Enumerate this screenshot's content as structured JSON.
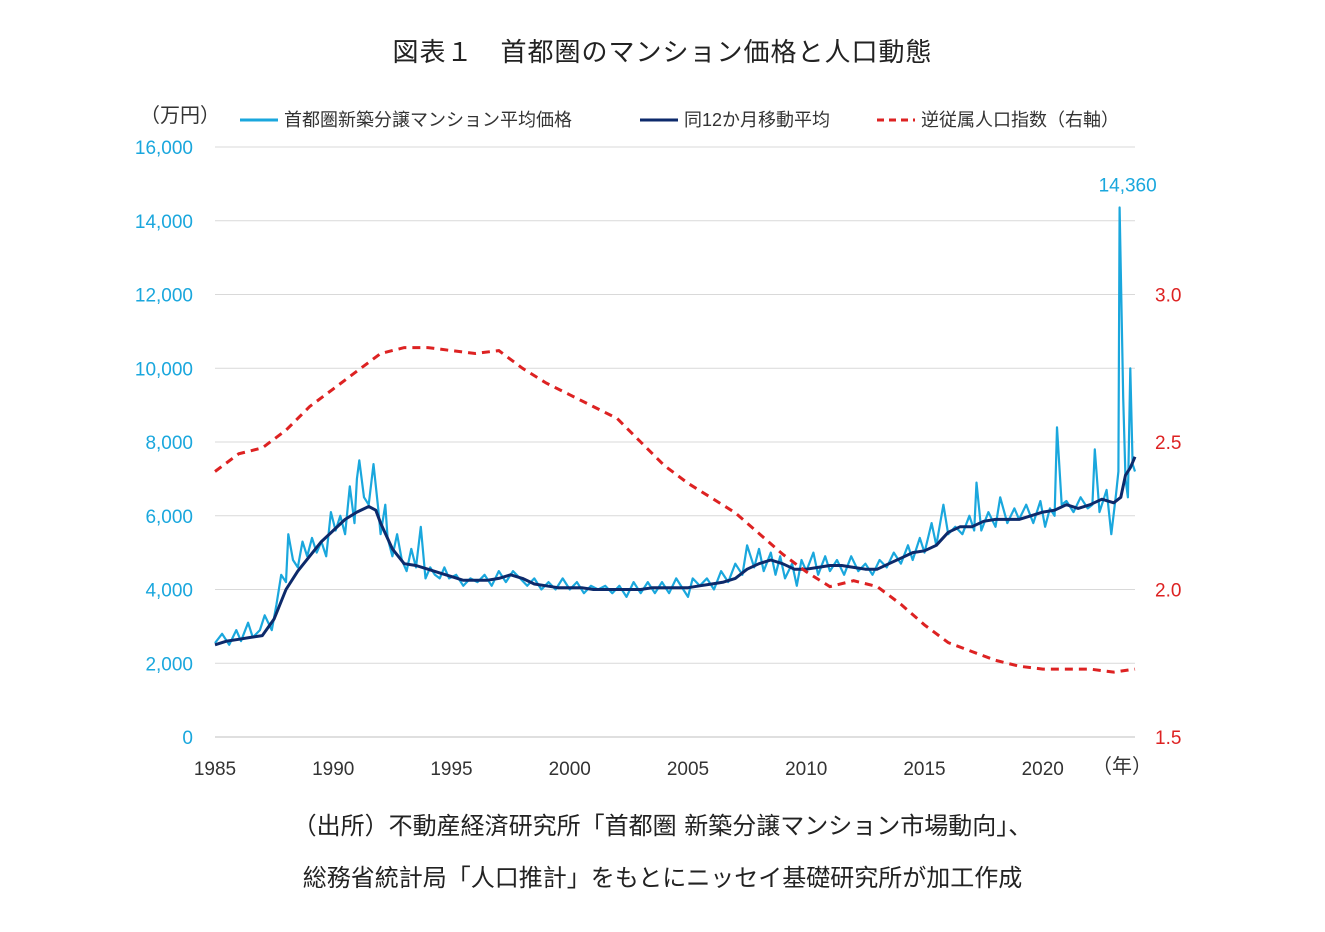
{
  "title": "図表１　首都圏のマンション価格と人口動態",
  "source_line1": "（出所）不動産経済研究所「首都圏 新築分譲マンション市場動向」、",
  "source_line2": "総務省統計局「人口推計」をもとにニッセイ基礎研究所が加工作成",
  "colors": {
    "price": "#1aa7dd",
    "moving_avg": "#0d2a6b",
    "ratio": "#dd2222",
    "left_axis": "#1aa7dd",
    "right_axis": "#dd2222",
    "grid": "#d9d9d9"
  },
  "chart_data": {
    "type": "line",
    "left_unit": "（万円）",
    "x_unit": "（年）",
    "x_ticks": [
      "1985",
      "1990",
      "1995",
      "2000",
      "2005",
      "2010",
      "2015",
      "2020"
    ],
    "xlim": [
      1985,
      2023.9
    ],
    "ylim_left": [
      0,
      16000
    ],
    "left_ticks": [
      "0",
      "2,000",
      "4,000",
      "6,000",
      "8,000",
      "10,000",
      "12,000",
      "14,000",
      "16,000"
    ],
    "ylim_right": [
      1.5,
      3.5
    ],
    "right_ticks": [
      "1.5",
      "2.0",
      "2.5",
      "3.0"
    ],
    "peak_label": "14,360",
    "peak_point": [
      2023.25,
      14360
    ],
    "series": [
      {
        "name": "首都圏新築分譲マンション平均価格",
        "axis": "left",
        "style": "solid-light",
        "points": [
          [
            1985.0,
            2550
          ],
          [
            1985.3,
            2800
          ],
          [
            1985.6,
            2500
          ],
          [
            1985.9,
            2900
          ],
          [
            1986.1,
            2600
          ],
          [
            1986.4,
            3100
          ],
          [
            1986.6,
            2700
          ],
          [
            1986.9,
            2900
          ],
          [
            1987.1,
            3300
          ],
          [
            1987.4,
            2900
          ],
          [
            1987.6,
            3600
          ],
          [
            1987.8,
            4400
          ],
          [
            1988.0,
            4200
          ],
          [
            1988.1,
            5500
          ],
          [
            1988.3,
            4800
          ],
          [
            1988.5,
            4600
          ],
          [
            1988.7,
            5300
          ],
          [
            1988.9,
            4900
          ],
          [
            1989.1,
            5400
          ],
          [
            1989.3,
            5000
          ],
          [
            1989.5,
            5300
          ],
          [
            1989.7,
            4900
          ],
          [
            1989.9,
            6100
          ],
          [
            1990.1,
            5600
          ],
          [
            1990.3,
            6000
          ],
          [
            1990.5,
            5500
          ],
          [
            1990.7,
            6800
          ],
          [
            1990.9,
            5800
          ],
          [
            1991.0,
            7000
          ],
          [
            1991.1,
            7500
          ],
          [
            1991.3,
            6500
          ],
          [
            1991.5,
            6300
          ],
          [
            1991.7,
            7400
          ],
          [
            1991.9,
            6200
          ],
          [
            1992.0,
            5500
          ],
          [
            1992.2,
            6300
          ],
          [
            1992.3,
            5400
          ],
          [
            1992.5,
            4900
          ],
          [
            1992.7,
            5500
          ],
          [
            1992.9,
            4800
          ],
          [
            1993.1,
            4500
          ],
          [
            1993.3,
            5100
          ],
          [
            1993.5,
            4600
          ],
          [
            1993.7,
            5700
          ],
          [
            1993.9,
            4300
          ],
          [
            1994.1,
            4600
          ],
          [
            1994.3,
            4400
          ],
          [
            1994.5,
            4300
          ],
          [
            1994.7,
            4600
          ],
          [
            1994.9,
            4300
          ],
          [
            1995.2,
            4400
          ],
          [
            1995.5,
            4100
          ],
          [
            1995.8,
            4300
          ],
          [
            1996.1,
            4200
          ],
          [
            1996.4,
            4400
          ],
          [
            1996.7,
            4100
          ],
          [
            1997.0,
            4500
          ],
          [
            1997.3,
            4200
          ],
          [
            1997.6,
            4500
          ],
          [
            1997.9,
            4300
          ],
          [
            1998.2,
            4100
          ],
          [
            1998.5,
            4300
          ],
          [
            1998.8,
            4000
          ],
          [
            1999.1,
            4200
          ],
          [
            1999.4,
            4000
          ],
          [
            1999.7,
            4300
          ],
          [
            2000.0,
            4000
          ],
          [
            2000.3,
            4200
          ],
          [
            2000.6,
            3900
          ],
          [
            2000.9,
            4100
          ],
          [
            2001.2,
            4000
          ],
          [
            2001.5,
            4100
          ],
          [
            2001.8,
            3900
          ],
          [
            2002.1,
            4100
          ],
          [
            2002.4,
            3800
          ],
          [
            2002.7,
            4200
          ],
          [
            2003.0,
            3900
          ],
          [
            2003.3,
            4200
          ],
          [
            2003.6,
            3900
          ],
          [
            2003.9,
            4200
          ],
          [
            2004.2,
            3900
          ],
          [
            2004.5,
            4300
          ],
          [
            2004.8,
            4000
          ],
          [
            2005.0,
            3800
          ],
          [
            2005.2,
            4300
          ],
          [
            2005.5,
            4100
          ],
          [
            2005.8,
            4300
          ],
          [
            2006.1,
            4000
          ],
          [
            2006.4,
            4500
          ],
          [
            2006.7,
            4200
          ],
          [
            2007.0,
            4700
          ],
          [
            2007.3,
            4400
          ],
          [
            2007.5,
            5200
          ],
          [
            2007.8,
            4600
          ],
          [
            2008.0,
            5100
          ],
          [
            2008.2,
            4500
          ],
          [
            2008.5,
            5000
          ],
          [
            2008.7,
            4400
          ],
          [
            2008.9,
            4900
          ],
          [
            2009.1,
            4300
          ],
          [
            2009.4,
            4700
          ],
          [
            2009.6,
            4100
          ],
          [
            2009.8,
            4800
          ],
          [
            2010.0,
            4500
          ],
          [
            2010.3,
            5000
          ],
          [
            2010.5,
            4400
          ],
          [
            2010.8,
            4900
          ],
          [
            2011.0,
            4500
          ],
          [
            2011.3,
            4800
          ],
          [
            2011.6,
            4400
          ],
          [
            2011.9,
            4900
          ],
          [
            2012.2,
            4500
          ],
          [
            2012.5,
            4700
          ],
          [
            2012.8,
            4400
          ],
          [
            2013.1,
            4800
          ],
          [
            2013.4,
            4600
          ],
          [
            2013.7,
            5000
          ],
          [
            2014.0,
            4700
          ],
          [
            2014.3,
            5200
          ],
          [
            2014.5,
            4800
          ],
          [
            2014.8,
            5400
          ],
          [
            2015.0,
            5000
          ],
          [
            2015.3,
            5800
          ],
          [
            2015.5,
            5200
          ],
          [
            2015.8,
            6300
          ],
          [
            2016.0,
            5500
          ],
          [
            2016.3,
            5700
          ],
          [
            2016.6,
            5500
          ],
          [
            2016.9,
            6000
          ],
          [
            2017.1,
            5600
          ],
          [
            2017.2,
            6900
          ],
          [
            2017.4,
            5600
          ],
          [
            2017.7,
            6100
          ],
          [
            2018.0,
            5700
          ],
          [
            2018.2,
            6500
          ],
          [
            2018.5,
            5800
          ],
          [
            2018.8,
            6200
          ],
          [
            2019.0,
            5900
          ],
          [
            2019.3,
            6300
          ],
          [
            2019.6,
            5800
          ],
          [
            2019.9,
            6400
          ],
          [
            2020.1,
            5700
          ],
          [
            2020.3,
            6200
          ],
          [
            2020.5,
            6000
          ],
          [
            2020.6,
            8400
          ],
          [
            2020.8,
            6300
          ],
          [
            2021.0,
            6400
          ],
          [
            2021.3,
            6100
          ],
          [
            2021.6,
            6500
          ],
          [
            2021.9,
            6200
          ],
          [
            2022.1,
            6300
          ],
          [
            2022.2,
            7800
          ],
          [
            2022.4,
            6100
          ],
          [
            2022.7,
            6700
          ],
          [
            2022.9,
            5500
          ],
          [
            2023.1,
            6600
          ],
          [
            2023.2,
            7200
          ],
          [
            2023.25,
            14360
          ],
          [
            2023.4,
            9200
          ],
          [
            2023.5,
            7000
          ],
          [
            2023.6,
            6500
          ],
          [
            2023.7,
            10000
          ],
          [
            2023.8,
            7400
          ],
          [
            2023.9,
            7200
          ]
        ]
      },
      {
        "name": "同12か月移動平均",
        "axis": "left",
        "style": "solid-dark",
        "points": [
          [
            1985.0,
            2500
          ],
          [
            1985.5,
            2600
          ],
          [
            1986.0,
            2650
          ],
          [
            1986.5,
            2700
          ],
          [
            1987.0,
            2750
          ],
          [
            1987.5,
            3200
          ],
          [
            1988.0,
            4000
          ],
          [
            1988.5,
            4500
          ],
          [
            1989.0,
            4900
          ],
          [
            1989.5,
            5300
          ],
          [
            1990.0,
            5600
          ],
          [
            1990.5,
            5900
          ],
          [
            1991.0,
            6100
          ],
          [
            1991.5,
            6250
          ],
          [
            1991.8,
            6150
          ],
          [
            1992.0,
            5800
          ],
          [
            1992.5,
            5100
          ],
          [
            1993.0,
            4700
          ],
          [
            1993.5,
            4650
          ],
          [
            1994.0,
            4550
          ],
          [
            1994.5,
            4450
          ],
          [
            1995.0,
            4350
          ],
          [
            1995.5,
            4250
          ],
          [
            1996.0,
            4250
          ],
          [
            1996.5,
            4250
          ],
          [
            1997.0,
            4300
          ],
          [
            1997.5,
            4400
          ],
          [
            1998.0,
            4300
          ],
          [
            1998.5,
            4150
          ],
          [
            1999.0,
            4100
          ],
          [
            1999.5,
            4050
          ],
          [
            2000.0,
            4050
          ],
          [
            2000.5,
            4050
          ],
          [
            2001.0,
            4000
          ],
          [
            2001.5,
            4000
          ],
          [
            2002.0,
            4000
          ],
          [
            2002.5,
            4000
          ],
          [
            2003.0,
            4000
          ],
          [
            2003.5,
            4050
          ],
          [
            2004.0,
            4050
          ],
          [
            2004.5,
            4050
          ],
          [
            2005.0,
            4050
          ],
          [
            2005.5,
            4100
          ],
          [
            2006.0,
            4150
          ],
          [
            2006.5,
            4200
          ],
          [
            2007.0,
            4300
          ],
          [
            2007.5,
            4550
          ],
          [
            2008.0,
            4700
          ],
          [
            2008.5,
            4800
          ],
          [
            2009.0,
            4700
          ],
          [
            2009.5,
            4550
          ],
          [
            2010.0,
            4550
          ],
          [
            2010.5,
            4600
          ],
          [
            2011.0,
            4650
          ],
          [
            2011.5,
            4650
          ],
          [
            2012.0,
            4600
          ],
          [
            2012.5,
            4550
          ],
          [
            2013.0,
            4550
          ],
          [
            2013.5,
            4700
          ],
          [
            2014.0,
            4850
          ],
          [
            2014.5,
            5000
          ],
          [
            2015.0,
            5050
          ],
          [
            2015.5,
            5200
          ],
          [
            2016.0,
            5550
          ],
          [
            2016.5,
            5700
          ],
          [
            2017.0,
            5700
          ],
          [
            2017.5,
            5850
          ],
          [
            2018.0,
            5900
          ],
          [
            2018.5,
            5900
          ],
          [
            2019.0,
            5900
          ],
          [
            2019.5,
            6000
          ],
          [
            2020.0,
            6100
          ],
          [
            2020.5,
            6150
          ],
          [
            2021.0,
            6300
          ],
          [
            2021.5,
            6200
          ],
          [
            2022.0,
            6300
          ],
          [
            2022.5,
            6450
          ],
          [
            2023.0,
            6350
          ],
          [
            2023.3,
            6500
          ],
          [
            2023.5,
            7100
          ],
          [
            2023.7,
            7300
          ],
          [
            2023.9,
            7600
          ]
        ]
      },
      {
        "name": "逆従属人口指数（右軸）",
        "axis": "right",
        "style": "dashed",
        "points": [
          [
            1985.0,
            2.4
          ],
          [
            1986.0,
            2.46
          ],
          [
            1987.0,
            2.48
          ],
          [
            1988.0,
            2.54
          ],
          [
            1989.0,
            2.62
          ],
          [
            1990.0,
            2.68
          ],
          [
            1991.0,
            2.74
          ],
          [
            1992.0,
            2.8
          ],
          [
            1993.0,
            2.82
          ],
          [
            1994.0,
            2.82
          ],
          [
            1995.0,
            2.81
          ],
          [
            1996.0,
            2.8
          ],
          [
            1997.0,
            2.81
          ],
          [
            1998.0,
            2.75
          ],
          [
            1999.0,
            2.7
          ],
          [
            2000.0,
            2.66
          ],
          [
            2001.0,
            2.62
          ],
          [
            2002.0,
            2.58
          ],
          [
            2003.0,
            2.5
          ],
          [
            2004.0,
            2.42
          ],
          [
            2005.0,
            2.36
          ],
          [
            2006.0,
            2.31
          ],
          [
            2007.0,
            2.26
          ],
          [
            2008.0,
            2.19
          ],
          [
            2009.0,
            2.12
          ],
          [
            2010.0,
            2.06
          ],
          [
            2011.0,
            2.01
          ],
          [
            2012.0,
            2.03
          ],
          [
            2013.0,
            2.01
          ],
          [
            2014.0,
            1.95
          ],
          [
            2015.0,
            1.88
          ],
          [
            2016.0,
            1.82
          ],
          [
            2017.0,
            1.79
          ],
          [
            2018.0,
            1.76
          ],
          [
            2019.0,
            1.74
          ],
          [
            2020.0,
            1.73
          ],
          [
            2021.0,
            1.73
          ],
          [
            2022.0,
            1.73
          ],
          [
            2023.0,
            1.72
          ],
          [
            2023.9,
            1.73
          ]
        ]
      }
    ]
  }
}
